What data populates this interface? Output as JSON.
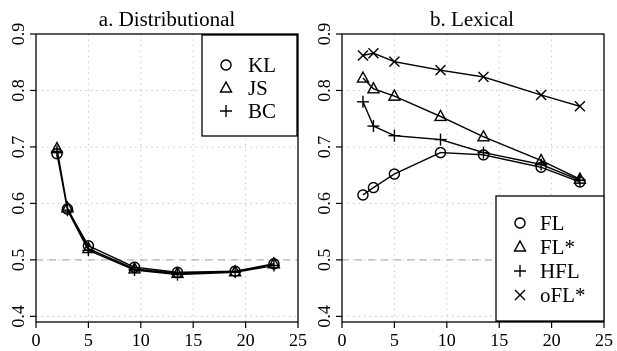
{
  "chart_data": [
    {
      "type": "line",
      "title": "a. Distributional",
      "xlim": [
        0,
        25
      ],
      "ylim": [
        0.39,
        0.9
      ],
      "x_ticks": [
        "0",
        "5",
        "10",
        "15",
        "20",
        "25"
      ],
      "y_ticks": [
        "0.4",
        "0.5",
        "0.6",
        "0.7",
        "0.8",
        "0.9"
      ],
      "grid": true,
      "reference_line": 0.5,
      "legend_position": "top-right",
      "x": [
        2,
        3,
        5,
        9.4,
        13.5,
        19,
        22.7
      ],
      "series": [
        {
          "name": "KL",
          "marker": "circle",
          "values": [
            0.688,
            0.59,
            0.525,
            0.487,
            0.478,
            0.48,
            0.493
          ]
        },
        {
          "name": "JS",
          "marker": "triangle",
          "values": [
            0.697,
            0.592,
            0.52,
            0.484,
            0.476,
            0.479,
            0.493
          ]
        },
        {
          "name": "BC",
          "marker": "plus",
          "values": [
            0.692,
            0.588,
            0.517,
            0.482,
            0.474,
            0.478,
            0.49
          ]
        }
      ]
    },
    {
      "type": "line",
      "title": "b. Lexical",
      "xlim": [
        0,
        25
      ],
      "ylim": [
        0.39,
        0.9
      ],
      "x_ticks": [
        "0",
        "5",
        "10",
        "15",
        "20",
        "25"
      ],
      "y_ticks": [
        "0.4",
        "0.5",
        "0.6",
        "0.7",
        "0.8",
        "0.9"
      ],
      "grid": true,
      "reference_line": 0.5,
      "legend_position": "bottom-right",
      "series": [
        {
          "name": "FL",
          "marker": "circle",
          "x": [
            2,
            3,
            5,
            9.4,
            13.5,
            19,
            22.7
          ],
          "values": [
            0.615,
            0.628,
            0.652,
            0.69,
            0.686,
            0.664,
            0.638
          ]
        },
        {
          "name": "FL*",
          "marker": "triangle",
          "x": [
            2,
            3,
            5,
            9.4,
            13.5,
            19,
            22.7
          ],
          "values": [
            0.822,
            0.803,
            0.79,
            0.754,
            0.718,
            0.676,
            0.643
          ]
        },
        {
          "name": "HFL",
          "marker": "plus",
          "x": [
            2,
            3,
            5,
            9.4,
            13.5,
            19,
            22.7
          ],
          "values": [
            0.78,
            0.737,
            0.72,
            0.713,
            0.69,
            0.669,
            0.641
          ]
        },
        {
          "name": "oFL*",
          "marker": "cross",
          "x": [
            2,
            3,
            5,
            9.4,
            13.5,
            19,
            22.7
          ],
          "values": [
            0.862,
            0.866,
            0.851,
            0.836,
            0.824,
            0.792,
            0.772
          ]
        }
      ]
    }
  ]
}
